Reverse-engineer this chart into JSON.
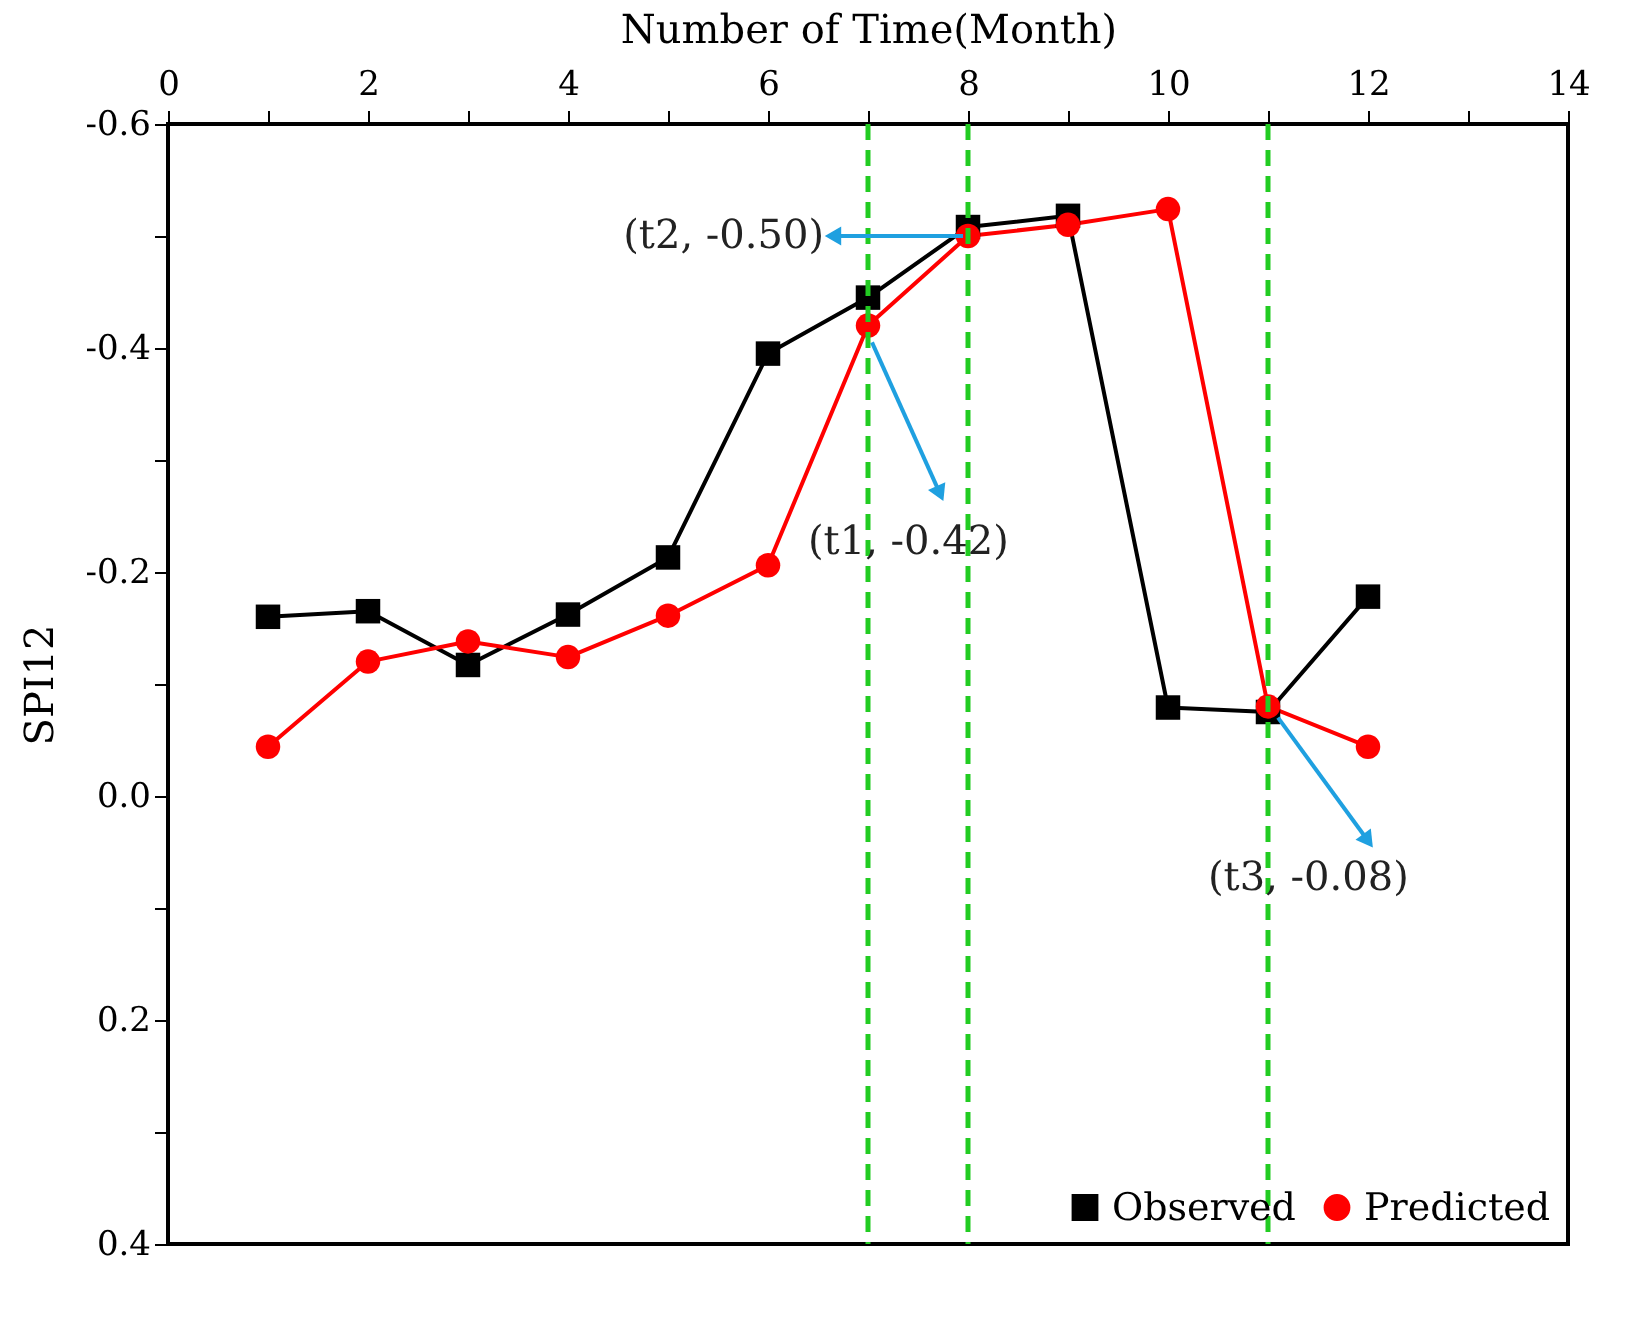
{
  "chart_data": {
    "type": "line",
    "xlabel": "Number of Time(Month)",
    "ylabel": "SPI12",
    "xlim": [
      0,
      14
    ],
    "xticks": [
      0,
      {
        "value": 1,
        "label": null
      },
      2,
      {
        "value": 3,
        "label": null
      },
      4,
      {
        "value": 5,
        "label": null
      },
      6,
      {
        "value": 7,
        "label": null
      },
      8,
      {
        "value": 9,
        "label": null
      },
      10,
      {
        "value": 11,
        "label": null
      },
      12,
      {
        "value": 13,
        "label": null
      },
      14
    ],
    "ylim": [
      0.4,
      -0.6
    ],
    "yticks": [
      -0.6,
      {
        "value": -0.5,
        "label": null
      },
      -0.4,
      {
        "value": -0.3,
        "label": null
      },
      -0.2,
      {
        "value": -0.1,
        "label": null
      },
      {
        "value": 0,
        "label": "0.0"
      },
      {
        "value": 0.1,
        "label": null
      },
      0.2,
      {
        "value": 0.3,
        "label": null
      },
      0.4
    ],
    "x": [
      1,
      2,
      3,
      4,
      5,
      6,
      7,
      8,
      9,
      10,
      11,
      12
    ],
    "series": [
      {
        "name": "Observed",
        "color": "#000000",
        "marker": "square",
        "values": [
          -0.16,
          -0.165,
          -0.117,
          -0.162,
          -0.213,
          -0.395,
          -0.445,
          -0.508,
          -0.518,
          -0.079,
          -0.075,
          -0.178
        ]
      },
      {
        "name": "Predicted",
        "color": "#ff0000",
        "marker": "circle",
        "values": [
          -0.044,
          -0.12,
          -0.138,
          -0.124,
          -0.161,
          -0.206,
          -0.42,
          -0.5,
          -0.51,
          -0.524,
          -0.08,
          -0.044
        ]
      }
    ],
    "ref_lines": [
      {
        "axis": "x",
        "value": 7,
        "color": "#22cc22",
        "line_style": "dashed"
      },
      {
        "axis": "x",
        "value": 8,
        "color": "#22cc22",
        "line_style": "dashed"
      },
      {
        "axis": "x",
        "value": 11,
        "color": "#22cc22",
        "line_style": "dashed"
      }
    ],
    "annotations": [
      {
        "text": "(t1, -0.42)",
        "x": 7,
        "y": -0.42
      },
      {
        "text": "(t2, -0.50)",
        "x": 8,
        "y": -0.5
      },
      {
        "text": "(t3, -0.08)",
        "x": 11,
        "y": -0.08
      }
    ],
    "legend": "bottom right",
    "grid": false,
    "line_style": "solid"
  }
}
